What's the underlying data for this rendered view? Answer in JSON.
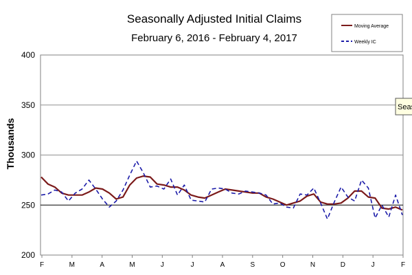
{
  "chart_data": {
    "type": "line",
    "title": "Seasonally Adjusted Initial Claims",
    "subtitle": "February 6, 2016  - February 4, 2017",
    "ylabel": "Thousands",
    "xlabel": "",
    "ylim": [
      200,
      400
    ],
    "yticks": [
      200,
      250,
      300,
      350,
      400
    ],
    "month_labels": [
      "F",
      "M",
      "A",
      "M",
      "J",
      "J",
      "A",
      "S",
      "O",
      "N",
      "D",
      "J",
      "F"
    ],
    "grid": true,
    "legend_position": "top-right",
    "tooltip_text": "Seaso",
    "series": [
      {
        "name": "Moving Average",
        "style": "solid",
        "color": "#7b1a1a",
        "values": [
          278,
          271,
          268,
          262,
          260,
          260,
          260,
          263,
          267,
          266,
          262,
          256,
          258,
          270,
          277,
          279,
          278,
          271,
          270,
          268,
          268,
          265,
          260,
          258,
          257,
          260,
          263,
          266,
          265,
          264,
          263,
          262,
          262,
          258,
          256,
          253,
          250,
          252,
          254,
          259,
          261,
          253,
          251,
          251,
          252,
          257,
          264,
          264,
          258,
          257,
          247,
          246,
          248,
          245
        ]
      },
      {
        "name": "Weekly IC",
        "style": "dashed",
        "color": "#1a1aa8",
        "values": [
          260,
          261,
          265,
          263,
          254,
          262,
          266,
          275,
          266,
          256,
          248,
          254,
          265,
          280,
          294,
          282,
          268,
          269,
          266,
          276,
          260,
          270,
          255,
          254,
          253,
          266,
          267,
          266,
          262,
          261,
          264,
          263,
          262,
          260,
          251,
          252,
          248,
          247,
          261,
          260,
          267,
          252,
          236,
          253,
          268,
          258,
          254,
          275,
          267,
          237,
          250,
          238,
          260,
          240
        ]
      }
    ]
  }
}
